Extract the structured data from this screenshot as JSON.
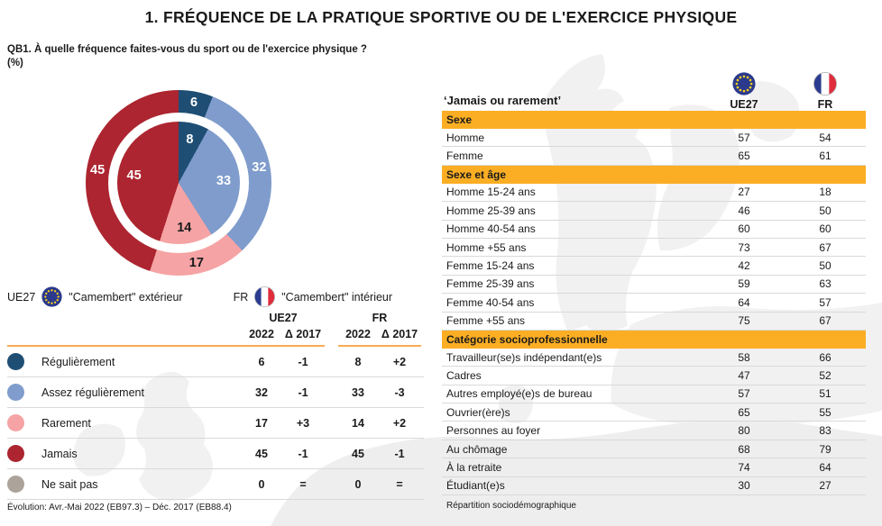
{
  "title": "1. FRÉQUENCE DE LA PRATIQUE SPORTIVE OU DE L'EXERCICE PHYSIQUE",
  "question": {
    "line1": "QB1. À quelle fréquence faites-vous du sport ou de l'exercice physique ?",
    "line2": "(%)"
  },
  "legend": {
    "ue_label": "UE27",
    "ue_text": "\"Camembert\" extérieur",
    "fr_label": "FR",
    "fr_text": "\"Camembert\" intérieur"
  },
  "colors": {
    "accent_orange": "#FBAE24",
    "header_line_orange": "#F8AC56",
    "row_divider": "#D9D9D9",
    "eu_flag_navy": "#2B3A8C",
    "eu_star_yellow": "#FFD21B",
    "fr_flag_blue": "#2A3C8F",
    "fr_flag_red": "#E02D3C"
  },
  "chart_data": [
    {
      "type": "pie",
      "variant": "nested-donut",
      "title": "QB1 fréquence de la pratique sportive (%)",
      "categories": [
        "Régulièrement",
        "Assez régulièrement",
        "Rarement",
        "Jamais",
        "Ne sait pas"
      ],
      "colors": [
        "#1F4E74",
        "#7F9CCC",
        "#F5A3A4",
        "#AC2530",
        "#ACA39A"
      ],
      "label_colors": [
        "#ffffff",
        "#ffffff",
        "#1a1a1a",
        "#ffffff",
        "#1a1a1a"
      ],
      "series": [
        {
          "name": "UE27",
          "ring": "outer",
          "values": [
            6,
            32,
            17,
            45,
            0
          ]
        },
        {
          "name": "FR",
          "ring": "inner",
          "values": [
            8,
            33,
            14,
            45,
            0
          ]
        }
      ],
      "start_angle_deg": 0,
      "direction": "clockwise"
    },
    {
      "type": "table",
      "name": "evolution-table",
      "group_headers": [
        "UE27",
        "FR"
      ],
      "col_headers": [
        "2022",
        "Δ 2017",
        "2022",
        "Δ 2017"
      ],
      "rows": [
        {
          "label": "Régulièrement",
          "color": "#1F4E74",
          "values": [
            "6",
            "-1",
            "8",
            "+2"
          ]
        },
        {
          "label": "Assez régulièrement",
          "color": "#7F9CCC",
          "values": [
            "32",
            "-1",
            "33",
            "-3"
          ]
        },
        {
          "label": "Rarement",
          "color": "#F5A3A4",
          "values": [
            "17",
            "+3",
            "14",
            "+2"
          ]
        },
        {
          "label": "Jamais",
          "color": "#AC2530",
          "values": [
            "45",
            "-1",
            "45",
            "-1"
          ]
        },
        {
          "label": "Ne sait pas",
          "color": "#ACA39A",
          "values": [
            "0",
            "=",
            "0",
            "="
          ]
        }
      ],
      "footnote": "Évolution: Avr.-Mai 2022 (EB97.3) – Déc. 2017 (EB88.4)"
    },
    {
      "type": "table",
      "name": "jamais-ou-rarement-breakdown",
      "title": "‘Jamais ou rarement’",
      "columns": [
        "UE27",
        "FR"
      ],
      "sections": [
        {
          "header": "Sexe",
          "rows": [
            [
              "Homme",
              "57",
              "54"
            ],
            [
              "Femme",
              "65",
              "61"
            ]
          ]
        },
        {
          "header": "Sexe et âge",
          "rows": [
            [
              "Homme 15-24 ans",
              "27",
              "18"
            ],
            [
              "Homme 25-39 ans",
              "46",
              "50"
            ],
            [
              "Homme 40-54 ans",
              "60",
              "60"
            ],
            [
              "Homme +55 ans",
              "73",
              "67"
            ],
            [
              "Femme 15-24 ans",
              "42",
              "50"
            ],
            [
              "Femme 25-39 ans",
              "59",
              "63"
            ],
            [
              "Femme 40-54 ans",
              "64",
              "57"
            ],
            [
              "Femme +55 ans",
              "75",
              "67"
            ]
          ]
        },
        {
          "header": "Catégorie socioprofessionnelle",
          "rows": [
            [
              "Travailleur(se)s indépendant(e)s",
              "58",
              "66"
            ],
            [
              "Cadres",
              "47",
              "52"
            ],
            [
              "Autres employé(e)s de bureau",
              "57",
              "51"
            ],
            [
              "Ouvrier(ère)s",
              "65",
              "55"
            ],
            [
              "Personnes au foyer",
              "80",
              "83"
            ],
            [
              "Au chômage",
              "68",
              "79"
            ],
            [
              "À la retraite",
              "74",
              "64"
            ],
            [
              "Étudiant(e)s",
              "30",
              "27"
            ]
          ]
        }
      ],
      "footnote": "Répartition sociodémographique"
    }
  ]
}
